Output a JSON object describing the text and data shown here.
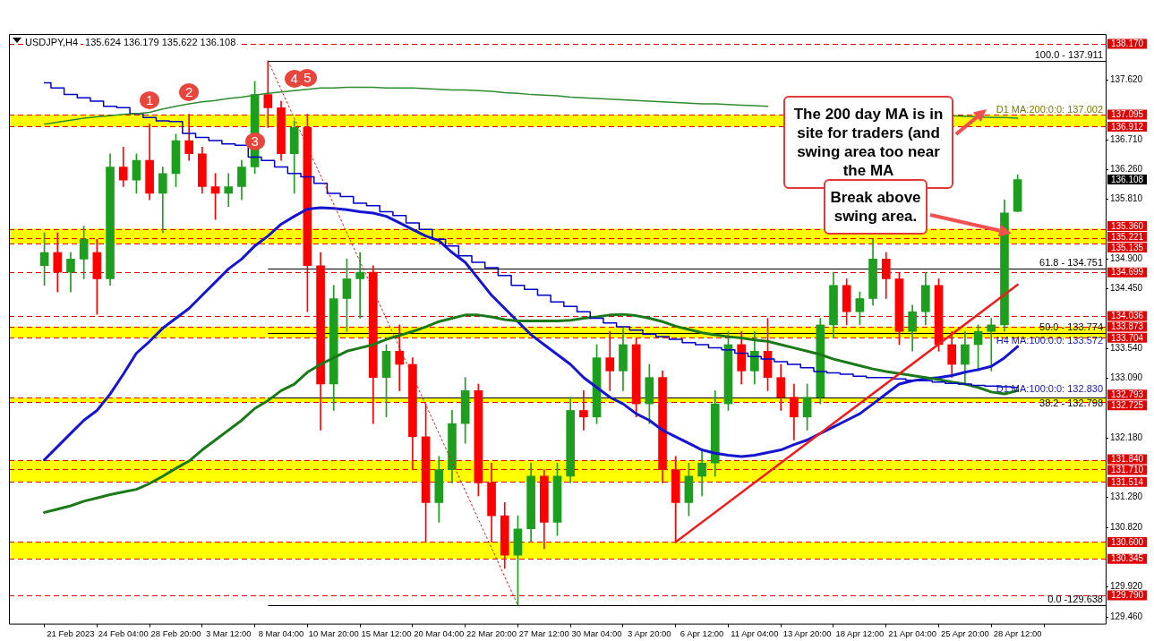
{
  "chart_data": {
    "type": "candlestick",
    "title": "USDJPY,H4",
    "subtitle": "135.624 136.179 135.622 136.108",
    "categories": [
      null,
      null,
      "21 Feb 2023",
      null,
      null,
      null,
      "24 Feb 04:00",
      null,
      null,
      null,
      "28 Feb 20:00",
      null,
      null,
      null,
      "3 Mar 12:00",
      null,
      null,
      null,
      "8 Mar 04:00",
      null,
      null,
      null,
      "10 Mar 20:00",
      null,
      null,
      null,
      "15 Mar 12:00",
      null,
      null,
      null,
      "20 Mar 04:00",
      null,
      null,
      null,
      "22 Mar 20:00",
      null,
      null,
      null,
      "27 Mar 12:00",
      null,
      null,
      null,
      "30 Mar 04:00",
      null,
      null,
      null,
      "3 Apr 20:00",
      null,
      null,
      null,
      "6 Apr 12:00",
      null,
      null,
      null,
      "11 Apr 04:00",
      null,
      null,
      null,
      "13 Apr 20:00",
      null,
      null,
      null,
      "18 Apr 12:00",
      null,
      null,
      null,
      "21 Apr 04:00",
      null,
      null,
      null,
      "25 Apr 20:00",
      null,
      null,
      null,
      "28 Apr 12:00"
    ],
    "ohlc": [
      [
        134.8,
        135.3,
        134.5,
        135.0
      ],
      [
        135.0,
        135.3,
        134.4,
        134.7
      ],
      [
        134.7,
        135.0,
        134.4,
        134.9
      ],
      [
        134.9,
        135.4,
        134.6,
        135.2
      ],
      [
        135.0,
        135.2,
        134.06,
        134.6
      ],
      [
        134.6,
        136.5,
        134.5,
        136.3
      ],
      [
        136.3,
        136.6,
        136.0,
        136.1
      ],
      [
        136.1,
        136.5,
        135.9,
        136.4
      ],
      [
        136.4,
        136.95,
        135.8,
        135.9
      ],
      [
        135.9,
        136.3,
        135.3,
        136.2
      ],
      [
        136.2,
        136.8,
        136.0,
        136.7
      ],
      [
        136.7,
        137.1,
        136.4,
        136.5
      ],
      [
        136.5,
        136.6,
        135.9,
        136.0
      ],
      [
        136.0,
        136.2,
        135.5,
        135.9
      ],
      [
        135.9,
        136.2,
        135.7,
        136.0
      ],
      [
        136.0,
        136.4,
        135.8,
        136.3
      ],
      [
        136.3,
        137.6,
        136.2,
        137.4
      ],
      [
        137.4,
        137.911,
        136.9,
        137.2
      ],
      [
        137.2,
        137.3,
        136.4,
        136.5
      ],
      [
        136.5,
        137.0,
        135.9,
        136.9
      ],
      [
        136.9,
        137.1,
        134.1,
        134.8
      ],
      [
        134.8,
        135.0,
        132.3,
        133.0
      ],
      [
        133.0,
        134.5,
        132.6,
        134.3
      ],
      [
        134.3,
        134.9,
        133.8,
        134.6
      ],
      [
        134.6,
        135.0,
        134.0,
        134.7
      ],
      [
        134.7,
        134.8,
        132.4,
        133.1
      ],
      [
        133.1,
        133.6,
        132.5,
        133.5
      ],
      [
        133.5,
        133.9,
        132.9,
        133.3
      ],
      [
        133.3,
        133.4,
        131.7,
        132.2
      ],
      [
        132.2,
        132.7,
        130.6,
        131.2
      ],
      [
        131.2,
        131.9,
        130.9,
        131.7
      ],
      [
        131.7,
        132.6,
        131.5,
        132.4
      ],
      [
        132.4,
        133.1,
        132.1,
        132.9
      ],
      [
        132.9,
        133.0,
        131.3,
        131.5
      ],
      [
        131.5,
        131.8,
        130.6,
        131.0
      ],
      [
        131.0,
        131.2,
        130.2,
        130.4
      ],
      [
        130.4,
        131.0,
        129.638,
        130.8
      ],
      [
        130.8,
        131.8,
        130.6,
        131.6
      ],
      [
        131.6,
        131.7,
        130.5,
        130.9
      ],
      [
        130.9,
        131.8,
        130.7,
        131.6
      ],
      [
        131.6,
        132.8,
        131.5,
        132.6
      ],
      [
        132.6,
        132.9,
        132.3,
        132.5
      ],
      [
        132.5,
        133.6,
        132.4,
        133.4
      ],
      [
        133.4,
        133.8,
        132.9,
        133.2
      ],
      [
        133.2,
        133.85,
        132.9,
        133.6
      ],
      [
        133.6,
        133.7,
        132.5,
        132.7
      ],
      [
        132.7,
        133.3,
        132.4,
        133.1
      ],
      [
        133.1,
        133.2,
        131.5,
        131.7
      ],
      [
        131.7,
        131.9,
        130.6,
        131.2
      ],
      [
        131.2,
        131.8,
        131.0,
        131.6
      ],
      [
        131.6,
        132.0,
        131.3,
        131.8
      ],
      [
        131.8,
        132.9,
        131.6,
        132.7
      ],
      [
        132.7,
        133.8,
        132.6,
        133.6
      ],
      [
        133.6,
        133.8,
        133.0,
        133.2
      ],
      [
        133.2,
        133.8,
        133.0,
        133.5
      ],
      [
        133.5,
        134.0,
        132.9,
        133.1
      ],
      [
        133.1,
        133.3,
        132.6,
        132.8
      ],
      [
        132.8,
        133.0,
        132.15,
        132.5
      ],
      [
        132.5,
        133.0,
        132.3,
        132.8
      ],
      [
        132.8,
        134.0,
        132.7,
        133.9
      ],
      [
        133.9,
        134.7,
        133.7,
        134.5
      ],
      [
        134.5,
        134.6,
        133.9,
        134.1
      ],
      [
        134.1,
        134.4,
        133.9,
        134.3
      ],
      [
        134.3,
        135.2,
        134.2,
        134.9
      ],
      [
        134.9,
        135.0,
        134.3,
        134.6
      ],
      [
        134.6,
        134.7,
        133.6,
        133.8
      ],
      [
        133.8,
        134.2,
        133.5,
        134.1
      ],
      [
        134.1,
        134.7,
        133.9,
        134.5
      ],
      [
        134.5,
        134.6,
        133.5,
        133.6
      ],
      [
        133.6,
        133.8,
        133.1,
        133.3
      ],
      [
        133.3,
        133.8,
        133.0,
        133.6
      ],
      [
        133.6,
        133.9,
        133.2,
        133.8
      ],
      [
        133.8,
        134.0,
        133.2,
        133.9
      ],
      [
        133.9,
        135.8,
        133.8,
        135.6
      ],
      [
        135.624,
        136.179,
        135.622,
        136.108
      ]
    ],
    "colors": [
      "#1e9e1e",
      "#ff0000",
      "#1e9e1e",
      "#1e9e1e",
      "#ff0000",
      "#1e9e1e",
      "#ff0000",
      "#1e9e1e",
      "#ff0000",
      "#1e9e1e",
      "#1e9e1e",
      "#ff0000",
      "#ff0000",
      "#ff0000",
      "#1e9e1e",
      "#1e9e1e",
      "#1e9e1e",
      "#ff0000",
      "#ff0000",
      "#1e9e1e",
      "#ff0000",
      "#ff0000",
      "#1e9e1e",
      "#1e9e1e",
      "#1e9e1e",
      "#ff0000",
      "#1e9e1e",
      "#ff0000",
      "#ff0000",
      "#ff0000",
      "#1e9e1e",
      "#1e9e1e",
      "#1e9e1e",
      "#ff0000",
      "#ff0000",
      "#ff0000",
      "#1e9e1e",
      "#1e9e1e",
      "#ff0000",
      "#1e9e1e",
      "#1e9e1e",
      "#ff0000",
      "#1e9e1e",
      "#ff0000",
      "#1e9e1e",
      "#ff0000",
      "#1e9e1e",
      "#ff0000",
      "#ff0000",
      "#1e9e1e",
      "#1e9e1e",
      "#1e9e1e",
      "#1e9e1e",
      "#ff0000",
      "#1e9e1e",
      "#ff0000",
      "#ff0000",
      "#ff0000",
      "#1e9e1e",
      "#1e9e1e",
      "#1e9e1e",
      "#ff0000",
      "#1e9e1e",
      "#1e9e1e",
      "#ff0000",
      "#ff0000",
      "#1e9e1e",
      "#1e9e1e",
      "#ff0000",
      "#ff0000",
      "#1e9e1e",
      "#1e9e1e",
      "#1e9e1e",
      "#1e9e1e",
      "#1e9e1e"
    ],
    "series": [
      {
        "type": "line",
        "color": "#1414d2",
        "values": [
          131.85,
          132.05,
          132.25,
          132.45,
          132.6,
          132.85,
          133.15,
          133.47,
          133.65,
          133.85,
          134.0,
          134.15,
          134.35,
          134.55,
          134.75,
          134.9,
          135.1,
          135.25,
          135.43,
          135.55,
          135.66,
          135.68,
          135.67,
          135.65,
          135.62,
          135.6,
          135.55,
          135.45,
          135.35,
          135.25,
          135.18,
          135.0,
          134.85,
          134.6,
          134.35,
          134.15,
          133.95,
          133.75,
          133.6,
          133.45,
          133.3,
          133.1,
          132.95,
          132.8,
          132.7,
          132.55,
          132.45,
          132.3,
          132.2,
          132.1,
          132.0,
          131.95,
          131.92,
          131.9,
          131.92,
          131.96,
          132.0,
          132.08,
          132.15,
          132.25,
          132.35,
          132.45,
          132.55,
          132.7,
          132.85,
          133.0,
          133.05,
          133.08,
          133.1,
          133.13,
          133.18,
          133.22,
          133.27,
          133.4,
          133.57
        ]
      },
      {
        "type": "line",
        "color": "#1a7a1a",
        "values": [
          131.05,
          131.1,
          131.15,
          131.22,
          131.27,
          131.32,
          131.36,
          131.4,
          131.49,
          131.6,
          131.72,
          131.83,
          132.0,
          132.15,
          132.3,
          132.45,
          132.63,
          132.75,
          132.9,
          133.0,
          133.18,
          133.3,
          133.4,
          133.5,
          133.55,
          133.6,
          133.68,
          133.74,
          133.8,
          133.87,
          133.95,
          134.0,
          134.05,
          134.05,
          134.02,
          133.98,
          133.96,
          133.96,
          133.96,
          133.96,
          133.97,
          134.0,
          134.02,
          134.05,
          134.06,
          134.04,
          134.0,
          133.95,
          133.88,
          133.83,
          133.78,
          133.75,
          133.72,
          133.7,
          133.67,
          133.65,
          133.6,
          133.55,
          133.5,
          133.45,
          133.38,
          133.33,
          133.28,
          133.23,
          133.19,
          133.16,
          133.13,
          133.1,
          133.07,
          133.03,
          133.0,
          132.95,
          132.88,
          132.85,
          132.9
        ]
      },
      {
        "type": "step",
        "color": "#0000c8",
        "values": [
          137.58,
          137.5,
          137.4,
          137.35,
          137.3,
          137.22,
          137.2,
          137.11,
          137.05,
          137.0,
          136.99,
          136.81,
          136.75,
          136.7,
          136.65,
          136.63,
          136.45,
          136.4,
          136.3,
          136.2,
          136.15,
          136.05,
          135.9,
          135.85,
          135.75,
          135.71,
          135.62,
          135.56,
          135.45,
          135.35,
          135.2,
          135.1,
          134.95,
          134.85,
          134.77,
          134.65,
          134.5,
          134.44,
          134.35,
          134.25,
          134.18,
          134.1,
          134.0,
          133.93,
          133.87,
          133.82,
          133.76,
          133.72,
          133.68,
          133.63,
          133.6,
          133.55,
          133.52,
          133.47,
          133.42,
          133.38,
          133.34,
          133.3,
          133.25,
          133.19,
          133.17,
          133.15,
          133.12,
          133.1,
          133.1,
          133.08,
          133.06,
          133.05,
          133.03,
          133.01,
          133.0,
          132.98,
          132.97,
          132.96,
          132.95
        ]
      },
      {
        "type": "line",
        "color": "#2e8b2e",
        "values": [
          136.95,
          136.98,
          137.01,
          137.04,
          137.06,
          137.08,
          137.1,
          137.11,
          137.13,
          137.18,
          137.22,
          137.26,
          137.29,
          137.31,
          137.34,
          137.36,
          137.39,
          137.42,
          137.44,
          137.46,
          137.48,
          137.5,
          137.5,
          137.51,
          137.51,
          137.51,
          137.5,
          137.5,
          137.5,
          137.49,
          137.48,
          137.47,
          137.47,
          137.46,
          137.45,
          137.43,
          137.42,
          137.4,
          137.39,
          137.38,
          137.36,
          137.35,
          137.34,
          137.33,
          137.32,
          137.31,
          137.3,
          137.29,
          137.28,
          137.27,
          137.26,
          137.26,
          137.25,
          137.24,
          137.23,
          137.22,
          null,
          null,
          null,
          null,
          null,
          null,
          null,
          null,
          null,
          null,
          null,
          null,
          null,
          137.08,
          137.07,
          137.06,
          137.05,
          137.05,
          137.04
        ]
      },
      {
        "type": "line",
        "color": "#ee1c1c",
        "values": [
          null,
          null,
          null,
          null,
          null,
          null,
          null,
          null,
          null,
          null,
          null,
          null,
          null,
          null,
          null,
          null,
          null,
          null,
          null,
          null,
          null,
          null,
          null,
          null,
          null,
          null,
          null,
          null,
          null,
          null,
          null,
          null,
          null,
          null,
          null,
          null,
          null,
          null,
          null,
          null,
          null,
          null,
          null,
          null,
          null,
          null,
          null,
          null,
          130.6,
          null,
          null,
          null,
          null,
          null,
          null,
          null,
          null,
          null,
          null,
          null,
          null,
          null,
          null,
          null,
          null,
          null,
          null,
          null,
          null,
          null,
          null,
          null,
          null,
          null,
          134.51
        ]
      },
      {
        "type": "line",
        "color": "#d02020",
        "line_style": "dotted",
        "values": [
          null,
          null,
          null,
          null,
          null,
          null,
          null,
          null,
          null,
          null,
          null,
          null,
          null,
          null,
          null,
          null,
          null,
          137.911,
          null,
          null,
          null,
          null,
          null,
          null,
          null,
          null,
          null,
          null,
          null,
          null,
          null,
          null,
          null,
          null,
          null,
          null,
          129.638,
          null,
          null,
          null,
          null,
          null,
          null,
          null,
          null,
          null,
          null,
          null,
          null,
          null,
          null,
          null,
          null,
          null,
          null,
          null,
          null,
          null,
          null,
          null,
          null,
          null,
          null,
          null,
          null,
          null,
          null,
          null,
          null,
          null,
          null,
          null,
          null,
          null,
          null
        ]
      }
    ],
    "ylim": [
      129.36,
      138.32
    ],
    "yticks": [
      {
        "value": 137.62,
        "label": "137.620"
      },
      {
        "value": 136.71,
        "label": "136.710"
      },
      {
        "value": 136.26,
        "label": "136.260"
      },
      {
        "value": 135.81,
        "label": "135.810"
      },
      {
        "value": 134.9,
        "label": "134.900"
      },
      {
        "value": 134.45,
        "label": "134.450"
      },
      {
        "value": 133.54,
        "label": "133.540"
      },
      {
        "value": 133.09,
        "label": "133.090"
      },
      {
        "value": 132.18,
        "label": "132.180"
      },
      {
        "value": 131.28,
        "label": "131.280"
      },
      {
        "value": 130.82,
        "label": "130.820"
      },
      {
        "value": 129.92,
        "label": "129.920"
      },
      {
        "value": 129.46,
        "label": "129.460"
      }
    ],
    "bands": [
      {
        "axis": "y",
        "from": 136.912,
        "to": 137.095,
        "color": "#ffff00"
      },
      {
        "axis": "y",
        "from": 135.135,
        "to": 135.36,
        "color": "#ffff00"
      },
      {
        "axis": "y",
        "from": 133.704,
        "to": 133.873,
        "color": "#ffff00"
      },
      {
        "axis": "y",
        "from": 132.725,
        "to": 132.793,
        "color": "#ffff00"
      },
      {
        "axis": "y",
        "from": 131.514,
        "to": 131.84,
        "color": "#ffff00"
      },
      {
        "axis": "y",
        "from": 130.345,
        "to": 130.6,
        "color": "#ffff00"
      }
    ],
    "ref_lines": [
      {
        "axis": "y",
        "value": 138.17,
        "label": "138.170",
        "color": "#e00000",
        "line_style": "dashed"
      },
      {
        "axis": "y",
        "value": 137.095,
        "label": "137.095",
        "color": "#e00000",
        "line_style": "dashed"
      },
      {
        "axis": "y",
        "value": 136.912,
        "label": "136.912",
        "color": "#e00000",
        "line_style": "dashed"
      },
      {
        "axis": "y",
        "value": 135.36,
        "label": "135.360",
        "color": "#e00000",
        "line_style": "dashed"
      },
      {
        "axis": "y",
        "value": 135.221,
        "label": "135.221",
        "color": "#e00000",
        "line_style": "dashed"
      },
      {
        "axis": "y",
        "value": 135.135,
        "label": "135.135",
        "color": "#e00000",
        "line_style": "dashed"
      },
      {
        "axis": "y",
        "value": 134.699,
        "label": "134.699",
        "color": "#e00000",
        "line_style": "dashed"
      },
      {
        "axis": "y",
        "value": 134.036,
        "label": "134.036",
        "color": "#e00000",
        "line_style": "dashed"
      },
      {
        "axis": "y",
        "value": 133.873,
        "label": "133.873",
        "color": "#e00000",
        "line_style": "dashed"
      },
      {
        "axis": "y",
        "value": 133.704,
        "label": "133.704",
        "color": "#e00000",
        "line_style": "dashed"
      },
      {
        "axis": "y",
        "value": 132.793,
        "label": "132.793",
        "color": "#e00000",
        "line_style": "dashed"
      },
      {
        "axis": "y",
        "value": 132.725,
        "label": "132.725",
        "color": "#e00000",
        "line_style": "dashed"
      },
      {
        "axis": "y",
        "value": 131.84,
        "label": "131.840",
        "color": "#e00000",
        "line_style": "dashed"
      },
      {
        "axis": "y",
        "value": 131.71,
        "label": "131.710",
        "color": "#e00000",
        "line_style": "dashed"
      },
      {
        "axis": "y",
        "value": 131.514,
        "label": "131.514",
        "color": "#e00000",
        "line_style": "dashed"
      },
      {
        "axis": "y",
        "value": 130.6,
        "label": "130.600",
        "color": "#e00000",
        "line_style": "dashed"
      },
      {
        "axis": "y",
        "value": 130.345,
        "label": "130.345",
        "color": "#e00000",
        "line_style": "dashed"
      },
      {
        "axis": "y",
        "value": 129.79,
        "label": "129.790",
        "color": "#e00000",
        "line_style": "dashed"
      },
      {
        "axis": "y",
        "value": 137.911,
        "color": "#000000",
        "line_style": "solid"
      },
      {
        "axis": "y",
        "value": 134.751,
        "color": "#000000",
        "line_style": "solid"
      },
      {
        "axis": "y",
        "value": 133.774,
        "color": "#000000",
        "line_style": "solid"
      },
      {
        "axis": "y",
        "value": 132.798,
        "color": "#000000",
        "line_style": "solid"
      },
      {
        "axis": "y",
        "value": 129.638,
        "color": "#000000",
        "line_style": "solid"
      }
    ],
    "annotations": [
      "136.108",
      {
        "text": "1",
        "y": 137.08
      },
      {
        "text": "2",
        "y": 137.23
      },
      {
        "text": "3",
        "y": 136.83
      },
      {
        "text": "4",
        "y": 137.1
      },
      {
        "text": "5",
        "y": 137.12
      },
      "D1 MA:200:0:0: 137.002",
      "H4 MA:100:0:0: 133.572",
      {
        "text": "D1 MA:100:0:0: 132.830",
        "y": 132.83
      },
      "The 200 day MA is in site for traders (and swing area too near the MA",
      {
        "text": "Break above swing area.",
        "y": 135.25
      },
      {
        "text": "100.0 - 137.911",
        "y": 137.911
      },
      {
        "text": "61.8 - 134.751",
        "y": 134.751
      },
      {
        "text": "50.0 - 133.774",
        "y": 133.774
      },
      {
        "text": "38.2 - 132.798",
        "y": 132.798
      },
      {
        "text": "0.0 -129.638",
        "y": 129.638
      }
    ]
  }
}
